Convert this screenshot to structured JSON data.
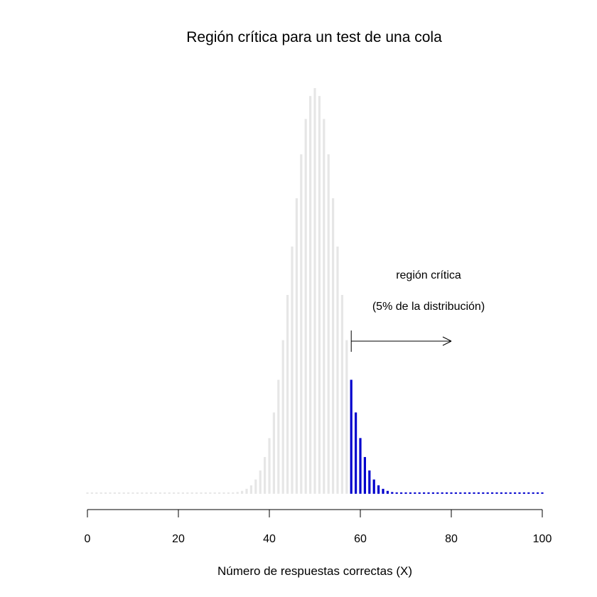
{
  "chart_data": {
    "type": "bar",
    "title": "Región crítica para un test de una cola",
    "xlabel": "Número de respuestas correctas (X)",
    "ylabel": "",
    "distribution": "binomial",
    "n": 100,
    "p": 0.5,
    "critical_value": 58,
    "xlim": [
      0,
      100
    ],
    "x_ticks": [
      0,
      20,
      40,
      60,
      80,
      100
    ],
    "colors": {
      "non_critical": "#e6e6e6",
      "critical": "#0000cd",
      "axis": "#000000"
    },
    "annotations": {
      "region_label": "región crítica",
      "region_sublabel": "(5% de la distribución)",
      "arrow_from_x": 58,
      "arrow_to_x": 80
    }
  }
}
